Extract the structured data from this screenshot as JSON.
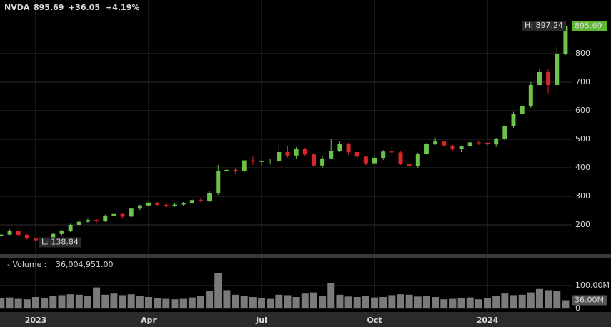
{
  "chart_data": {
    "type": "candlestick",
    "header": {
      "symbol": "NVDA",
      "last": "895.69",
      "change": "+36.05",
      "change_pct": "+4.19%"
    },
    "x": [
      1,
      2,
      3,
      4,
      5,
      6,
      7,
      8,
      9,
      10,
      11,
      12,
      13,
      14,
      15,
      16,
      17,
      18,
      19,
      20,
      21,
      22,
      23,
      24,
      25,
      26,
      27,
      28,
      29,
      30,
      31,
      32,
      33,
      34,
      35,
      36,
      37,
      38,
      39,
      40,
      41,
      42,
      43,
      44,
      45,
      46,
      47,
      48,
      49,
      50,
      51,
      52,
      53,
      54,
      55,
      56,
      57,
      58,
      59,
      60,
      61,
      62,
      63,
      64,
      65,
      66
    ],
    "xlim": [
      0.886,
      71.23
    ],
    "xticks": [
      {
        "value": 5,
        "label": "2023"
      },
      {
        "value": 18,
        "label": "Apr"
      },
      {
        "value": 31,
        "label": "Jul"
      },
      {
        "value": 44,
        "label": "Oct"
      },
      {
        "value": 57,
        "label": "2024"
      }
    ],
    "open": [
      162,
      166,
      178,
      165,
      152,
      146,
      150,
      168,
      178,
      200,
      211,
      217,
      213,
      232,
      238,
      229,
      257,
      268,
      278,
      270,
      267,
      271,
      277,
      287,
      283,
      312,
      389,
      393,
      388,
      426,
      422,
      423,
      425,
      455,
      443,
      467,
      447,
      408,
      433,
      460,
      485,
      455,
      439,
      416,
      435,
      457,
      454,
      413,
      405,
      450,
      483,
      492,
      478,
      467,
      475,
      489,
      488,
      482,
      500,
      545,
      590,
      615,
      690,
      735,
      690,
      800
    ],
    "high": [
      170,
      184,
      180,
      168,
      155,
      153,
      171,
      182,
      204,
      216,
      222,
      220,
      236,
      242,
      240,
      260,
      271,
      281,
      280,
      274,
      275,
      280,
      290,
      292,
      318,
      410,
      402,
      398,
      432,
      439,
      428,
      431,
      480,
      475,
      473,
      470,
      452,
      440,
      502,
      494,
      488,
      462,
      442,
      440,
      462,
      476,
      457,
      416,
      453,
      487,
      505,
      494,
      480,
      478,
      494,
      496,
      490,
      505,
      550,
      596,
      628,
      700,
      746,
      745,
      823,
      897.24
    ],
    "low": [
      158,
      164,
      162,
      149,
      138.84,
      141,
      147,
      164,
      175,
      196,
      207,
      208,
      210,
      227,
      222,
      226,
      252,
      264,
      266,
      262,
      263,
      268,
      273,
      279,
      280,
      305,
      372,
      378,
      384,
      410,
      405,
      412,
      420,
      436,
      432,
      440,
      403,
      400,
      430,
      455,
      446,
      432,
      409,
      412,
      428,
      448,
      410,
      393,
      400,
      446,
      480,
      470,
      460,
      455,
      470,
      480,
      475,
      473,
      495,
      540,
      585,
      610,
      685,
      661,
      685,
      795
    ],
    "close": [
      166,
      178,
      165,
      152,
      146,
      150,
      168,
      178,
      200,
      211,
      217,
      213,
      232,
      238,
      229,
      257,
      268,
      278,
      270,
      267,
      271,
      277,
      287,
      283,
      312,
      389,
      393,
      388,
      426,
      422,
      423,
      425,
      455,
      443,
      467,
      447,
      408,
      433,
      460,
      485,
      455,
      439,
      416,
      435,
      457,
      454,
      413,
      405,
      450,
      483,
      492,
      478,
      467,
      475,
      489,
      488,
      482,
      500,
      545,
      590,
      615,
      690,
      735,
      690,
      800,
      895.69
    ],
    "up_color": "#6cc24a",
    "down_color": "#d8262e",
    "ylim": [
      95,
      987.5
    ],
    "yticks": [
      200,
      300,
      400,
      500,
      600,
      700,
      800
    ],
    "grid": true,
    "high_label": "H: 897.24",
    "low_label": "L: 138.84",
    "last_label": "895.69",
    "last_color": "#5cb82e",
    "volume": {
      "label": "- Volume :",
      "header_value": "36,004,951.00",
      "color": "#7a7a7a",
      "values": [
        45000000,
        48000000,
        42000000,
        40000000,
        50000000,
        47000000,
        55000000,
        58000000,
        62000000,
        60000000,
        55000000,
        92000000,
        60000000,
        65000000,
        58000000,
        62000000,
        55000000,
        50000000,
        45000000,
        42000000,
        40000000,
        42000000,
        48000000,
        55000000,
        75000000,
        155000000,
        80000000,
        60000000,
        55000000,
        50000000,
        45000000,
        42000000,
        60000000,
        58000000,
        50000000,
        65000000,
        70000000,
        55000000,
        110000000,
        60000000,
        52000000,
        50000000,
        55000000,
        48000000,
        50000000,
        58000000,
        62000000,
        60000000,
        52000000,
        55000000,
        50000000,
        40000000,
        42000000,
        45000000,
        48000000,
        40000000,
        44000000,
        55000000,
        65000000,
        58000000,
        60000000,
        70000000,
        85000000,
        80000000,
        75000000,
        36004951
      ],
      "ylim": [
        -15625000,
        162500000
      ],
      "yticks": [
        {
          "value": 100000000,
          "label": "100.00M"
        },
        0
      ],
      "last_label": "36.00M"
    }
  }
}
